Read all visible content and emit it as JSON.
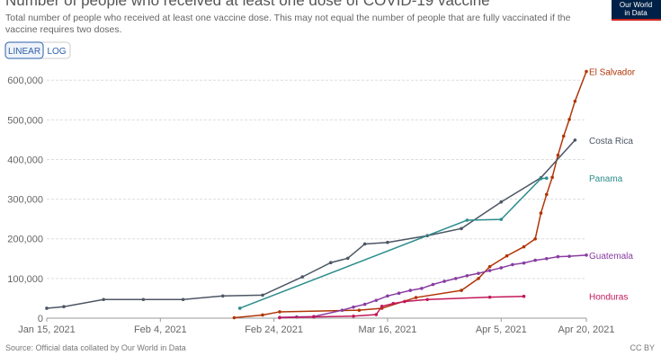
{
  "chart_data": {
    "type": "line",
    "title": "Number of people who received at least one dose of COVID-19 vaccine",
    "subtitle": "Total number of people who received at least one vaccine dose. This may not equal the number of people that are fully vaccinated if the vaccine requires two doses.",
    "buttons": [
      "LINEAR",
      "LOG"
    ],
    "logo": [
      "Our World",
      "in Data"
    ],
    "source": "Source: Official data collated by Our World in Data",
    "license": "CC BY",
    "xlim": [
      "2021-01-15",
      "2021-04-20"
    ],
    "xticks": [
      {
        "value": "2021-01-15",
        "label": "Jan 15, 2021"
      },
      {
        "value": "2021-02-04",
        "label": "Feb 4, 2021"
      },
      {
        "value": "2021-02-24",
        "label": "Feb 24, 2021"
      },
      {
        "value": "2021-03-16",
        "label": "Mar 16, 2021"
      },
      {
        "value": "2021-04-05",
        "label": "Apr 5, 2021"
      },
      {
        "value": "2021-04-20",
        "label": "Apr 20, 2021"
      }
    ],
    "ylim": [
      0,
      630000
    ],
    "yticks": [
      0,
      {
        "value": 100000,
        "label": "100,000"
      },
      {
        "value": 200000,
        "label": "200,000"
      },
      {
        "value": 300000,
        "label": "300,000"
      },
      {
        "value": 400000,
        "label": "400,000"
      },
      {
        "value": 500000,
        "label": "500,000"
      },
      {
        "value": 600000,
        "label": "600,000"
      }
    ],
    "grid": true,
    "series": [
      {
        "name": "El Salvador",
        "color": "#b13507",
        "x": [
          "2021-02-17",
          "2021-02-22",
          "2021-02-25",
          "2021-03-11",
          "2021-03-15",
          "2021-03-21",
          "2021-03-29",
          "2021-04-01",
          "2021-04-03",
          "2021-04-06",
          "2021-04-09",
          "2021-04-11",
          "2021-04-12",
          "2021-04-13",
          "2021-04-14",
          "2021-04-15",
          "2021-04-16",
          "2021-04-17",
          "2021-04-18",
          "2021-04-20"
        ],
        "values": [
          1000,
          8000,
          16000,
          20000,
          25000,
          52000,
          70000,
          100000,
          130000,
          157000,
          180000,
          200000,
          265000,
          312000,
          355000,
          411000,
          459000,
          501000,
          547000,
          622000
        ]
      },
      {
        "name": "Costa Rica",
        "color": "#4c5664",
        "x": [
          "2021-01-15",
          "2021-01-18",
          "2021-01-25",
          "2021-02-01",
          "2021-02-08",
          "2021-02-15",
          "2021-02-22",
          "2021-03-01",
          "2021-03-06",
          "2021-03-09",
          "2021-03-12",
          "2021-03-16",
          "2021-03-23",
          "2021-03-29",
          "2021-04-05",
          "2021-04-12",
          "2021-04-18"
        ],
        "values": [
          25000,
          29000,
          47000,
          47000,
          47000,
          56000,
          58000,
          104000,
          140000,
          151000,
          187000,
          191000,
          208000,
          226000,
          293000,
          354000,
          449000
        ]
      },
      {
        "name": "Panama",
        "color": "#2c8c8c",
        "x": [
          "2021-02-18",
          "2021-03-30",
          "2021-04-05",
          "2021-04-12",
          "2021-04-13"
        ],
        "values": [
          25000,
          247000,
          249000,
          352000,
          353000
        ]
      },
      {
        "name": "Guatemala",
        "color": "#883ca0",
        "x": [
          "2021-02-25",
          "2021-02-28",
          "2021-03-03",
          "2021-03-08",
          "2021-03-10",
          "2021-03-12",
          "2021-03-14",
          "2021-03-16",
          "2021-03-18",
          "2021-03-20",
          "2021-03-22",
          "2021-03-24",
          "2021-03-26",
          "2021-03-28",
          "2021-03-30",
          "2021-04-01",
          "2021-04-03",
          "2021-04-05",
          "2021-04-07",
          "2021-04-09",
          "2021-04-11",
          "2021-04-13",
          "2021-04-15",
          "2021-04-17",
          "2021-04-20"
        ],
        "values": [
          2000,
          3000,
          4000,
          20000,
          28000,
          35000,
          45000,
          56000,
          63000,
          70000,
          75000,
          85000,
          93000,
          100000,
          107000,
          113000,
          120000,
          127000,
          135000,
          139000,
          146000,
          150000,
          155000,
          156000,
          159000
        ]
      },
      {
        "name": "Honduras",
        "color": "#c2185b",
        "x": [
          "2021-02-25",
          "2021-03-03",
          "2021-03-10",
          "2021-03-14",
          "2021-03-15",
          "2021-03-17",
          "2021-03-19",
          "2021-03-23",
          "2021-04-03",
          "2021-04-09"
        ],
        "values": [
          1000,
          3000,
          5000,
          9000,
          30000,
          37000,
          42000,
          47000,
          53000,
          55000
        ]
      }
    ]
  }
}
